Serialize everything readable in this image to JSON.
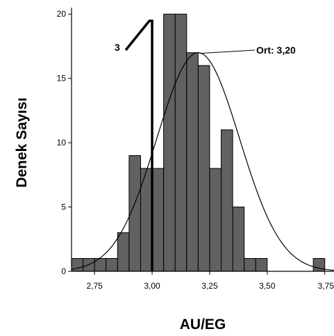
{
  "chart_data": {
    "type": "bar",
    "xlabel": "AU/EG",
    "ylabel": "Denek Sayısı",
    "xlim": [
      2.65,
      3.79
    ],
    "ylim": [
      0,
      20.5
    ],
    "bin_width": 0.05,
    "bars": [
      {
        "x0": 2.65,
        "x1": 2.7,
        "value": 1
      },
      {
        "x0": 2.7,
        "x1": 2.75,
        "value": 1
      },
      {
        "x0": 2.75,
        "x1": 2.8,
        "value": 1
      },
      {
        "x0": 2.8,
        "x1": 2.85,
        "value": 1
      },
      {
        "x0": 2.85,
        "x1": 2.9,
        "value": 3
      },
      {
        "x0": 2.9,
        "x1": 2.95,
        "value": 9
      },
      {
        "x0": 2.95,
        "x1": 3.0,
        "value": 8
      },
      {
        "x0": 3.0,
        "x1": 3.05,
        "value": 8
      },
      {
        "x0": 3.05,
        "x1": 3.1,
        "value": 20
      },
      {
        "x0": 3.1,
        "x1": 3.15,
        "value": 20
      },
      {
        "x0": 3.15,
        "x1": 3.2,
        "value": 17
      },
      {
        "x0": 3.2,
        "x1": 3.25,
        "value": 16
      },
      {
        "x0": 3.25,
        "x1": 3.3,
        "value": 8
      },
      {
        "x0": 3.3,
        "x1": 3.35,
        "value": 11
      },
      {
        "x0": 3.35,
        "x1": 3.4,
        "value": 5
      },
      {
        "x0": 3.4,
        "x1": 3.45,
        "value": 1
      },
      {
        "x0": 3.45,
        "x1": 3.5,
        "value": 1
      },
      {
        "x0": 3.5,
        "x1": 3.55,
        "value": 0
      },
      {
        "x0": 3.55,
        "x1": 3.6,
        "value": 0
      },
      {
        "x0": 3.6,
        "x1": 3.65,
        "value": 0
      },
      {
        "x0": 3.65,
        "x1": 3.7,
        "value": 0
      },
      {
        "x0": 3.7,
        "x1": 3.75,
        "value": 1
      }
    ],
    "x_ticks": [
      {
        "value": 2.75,
        "label": "2,75"
      },
      {
        "value": 3.0,
        "label": "3,00"
      },
      {
        "value": 3.25,
        "label": "3,25"
      },
      {
        "value": 3.5,
        "label": "3,50"
      },
      {
        "value": 3.75,
        "label": "3,75"
      }
    ],
    "y_ticks": [
      {
        "value": 0,
        "label": "0"
      },
      {
        "value": 5,
        "label": "5"
      },
      {
        "value": 10,
        "label": "10"
      },
      {
        "value": 15,
        "label": "15"
      },
      {
        "value": 20,
        "label": "20"
      }
    ],
    "normal_curve": {
      "mean": 3.2,
      "sd": 0.18,
      "peak": 17
    },
    "annotations": {
      "mean_label": "Ort: 3,20",
      "marker_label": "3",
      "marker_value": 3.0
    },
    "bar_color": "#616161",
    "bar_edge_color": "#000000",
    "curve_color": "#000000"
  }
}
